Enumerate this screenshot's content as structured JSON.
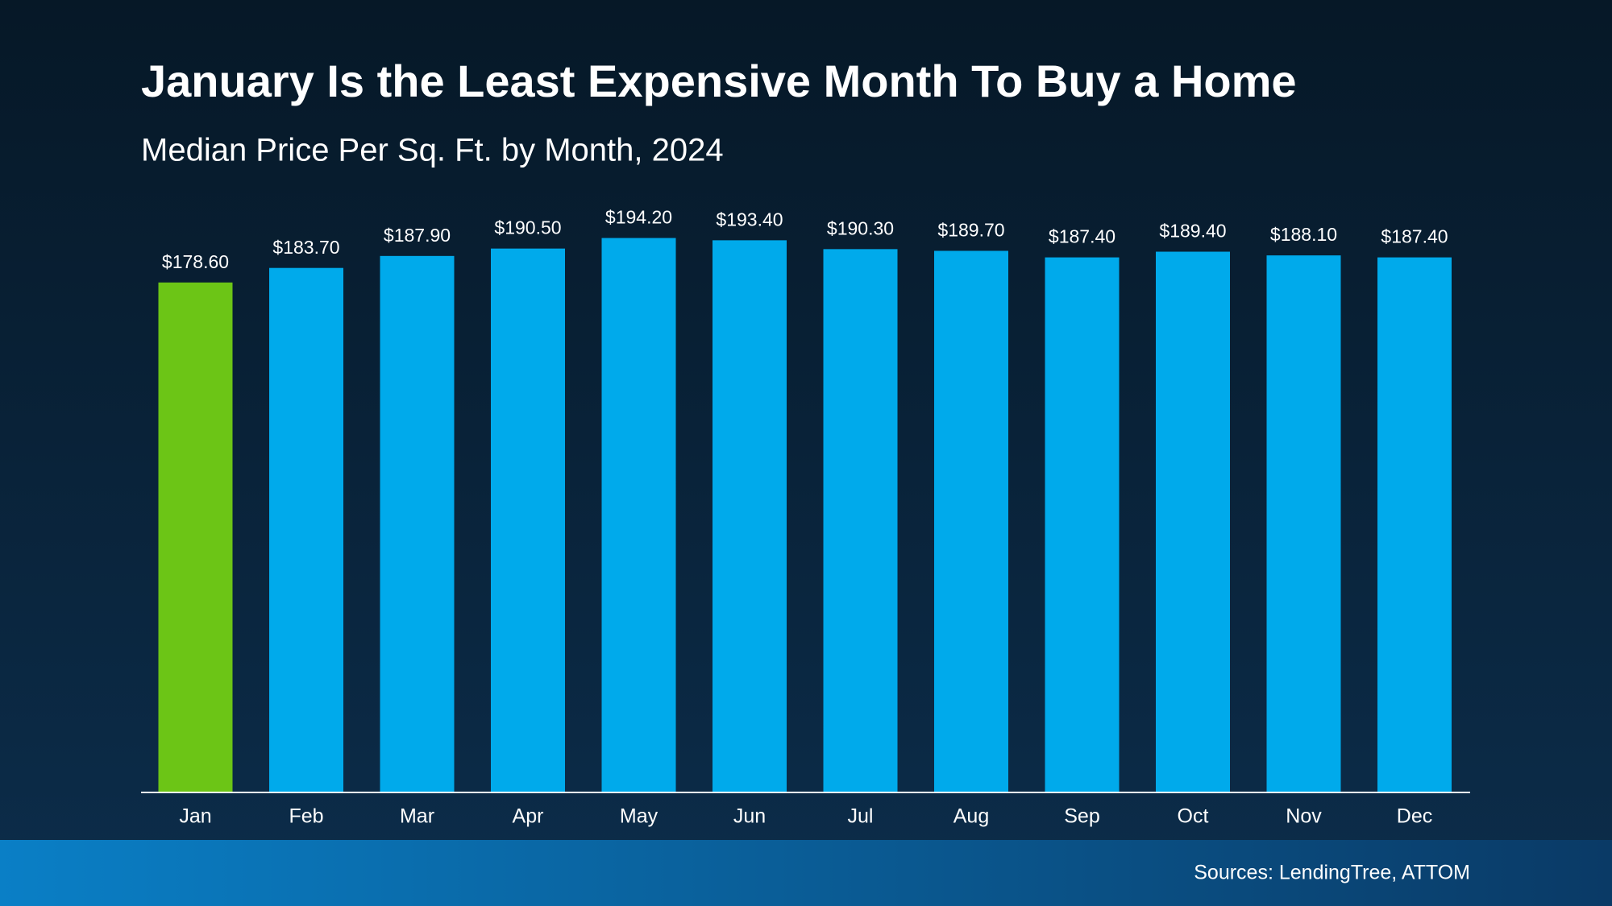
{
  "chart_data": {
    "type": "bar",
    "title": "January Is the Least Expensive Month To Buy a Home",
    "subtitle": "Median Price Per Sq. Ft. by Month, 2024",
    "categories": [
      "Jan",
      "Feb",
      "Mar",
      "Apr",
      "May",
      "Jun",
      "Jul",
      "Aug",
      "Sep",
      "Oct",
      "Nov",
      "Dec"
    ],
    "values": [
      178.6,
      183.7,
      187.9,
      190.5,
      194.2,
      193.4,
      190.3,
      189.7,
      187.4,
      189.4,
      188.1,
      187.4
    ],
    "value_labels": [
      "$178.60",
      "$183.70",
      "$187.90",
      "$190.50",
      "$194.20",
      "$193.40",
      "$190.30",
      "$189.70",
      "$187.40",
      "$189.40",
      "$188.10",
      "$187.40"
    ],
    "colors": [
      "#6cc516",
      "#00aaeb",
      "#00aaeb",
      "#00aaeb",
      "#00aaeb",
      "#00aaeb",
      "#00aaeb",
      "#00aaeb",
      "#00aaeb",
      "#00aaeb",
      "#00aaeb",
      "#00aaeb"
    ],
    "source": "Sources: LendingTree, ATTOM"
  }
}
